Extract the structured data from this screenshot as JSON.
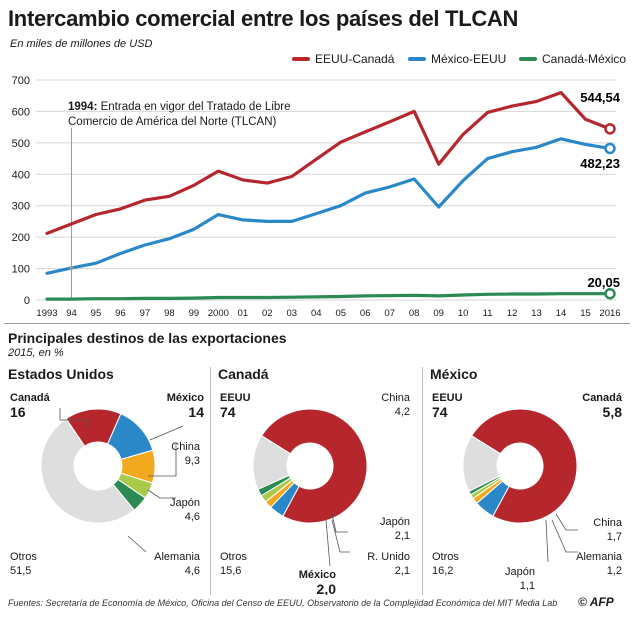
{
  "title": "Intercambio comercial entre los países del TLCAN",
  "subtitle": "En miles de millones de USD",
  "legend": [
    {
      "label": "EEUU-Canadá",
      "color": "#b5262d"
    },
    {
      "label": "México-EEUU",
      "color": "#2a88c9"
    },
    {
      "label": "Canadá-México",
      "color": "#2c8a55"
    }
  ],
  "annotation": "1994: Entrada en vigor del Tratado de Libre Comercio de América del Norte (TLCAN)",
  "annotation_line1": "1994: Entrada en vigor del Tratado de Libre",
  "annotation_line2": "Comercio de América del Norte (TLCAN)",
  "end_labels": [
    "544,54",
    "482,23",
    "20,05"
  ],
  "section2": {
    "title": "Principales destinos de las exportaciones",
    "subtitle": "2015, en %"
  },
  "panels": [
    {
      "title": "Estados Unidos"
    },
    {
      "title": "Canadá"
    },
    {
      "title": "México"
    }
  ],
  "footer": "Fuentes: Secretaría de Economía de México, Oficina del Censo de EEUU, Observatorio de la Complejidad Económica del MIT Media Lab",
  "copyright": "©",
  "agency": "AFP",
  "chart_data": [
    {
      "type": "line",
      "x": [
        "1993",
        "94",
        "95",
        "96",
        "97",
        "98",
        "99",
        "2000",
        "01",
        "02",
        "03",
        "04",
        "05",
        "06",
        "07",
        "08",
        "09",
        "10",
        "11",
        "12",
        "13",
        "14",
        "15",
        "2016"
      ],
      "ylim": [
        0,
        700
      ],
      "yticks": [
        0,
        100,
        200,
        300,
        400,
        500,
        600,
        700
      ],
      "grid": true,
      "legend_position": "top-right",
      "series": [
        {
          "name": "EEUU-Canadá",
          "color": "#b5262d",
          "values": [
            212,
            242,
            272,
            290,
            318,
            330,
            365,
            410,
            382,
            372,
            393,
            448,
            502,
            535,
            567,
            600,
            432,
            527,
            597,
            617,
            632,
            660,
            575,
            544.54
          ]
        },
        {
          "name": "México-EEUU",
          "color": "#2a88c9",
          "values": [
            85,
            102,
            117,
            148,
            175,
            195,
            225,
            272,
            255,
            250,
            250,
            275,
            300,
            340,
            360,
            385,
            296,
            380,
            450,
            472,
            486,
            513,
            495,
            482.23
          ]
        },
        {
          "name": "Canadá-México",
          "color": "#2c8a55",
          "values": [
            3,
            3,
            4,
            4,
            5,
            5,
            6,
            8,
            8,
            8,
            9,
            10,
            11,
            13,
            14,
            15,
            13,
            16,
            18,
            19,
            19,
            20,
            20,
            20.05
          ]
        }
      ]
    },
    {
      "type": "pie",
      "title": "Estados Unidos",
      "slices": [
        {
          "label": "Canadá",
          "value": 16,
          "color": "#b5262d"
        },
        {
          "label": "México",
          "value": 14,
          "color": "#2a88c9"
        },
        {
          "label": "China",
          "value": 9.3,
          "color": "#f2a91e"
        },
        {
          "label": "Japón",
          "value": 4.6,
          "color": "#a9c94b"
        },
        {
          "label": "Alemania",
          "value": 4.6,
          "color": "#2c8a55"
        },
        {
          "label": "Otros",
          "value": 51.5,
          "color": "#dedede"
        }
      ],
      "labels": [
        {
          "name": "Canadá",
          "value": "16",
          "big": true
        },
        {
          "name": "México",
          "value": "14",
          "big": true
        },
        {
          "name": "China",
          "value": "9,3",
          "big": false
        },
        {
          "name": "Japón",
          "value": "4,6",
          "big": false
        },
        {
          "name": "Alemania",
          "value": "4,6",
          "big": false
        },
        {
          "name": "Otros",
          "value": "51,5",
          "big": false
        }
      ]
    },
    {
      "type": "pie",
      "title": "Canadá",
      "slices": [
        {
          "label": "EEUU",
          "value": 74,
          "color": "#b5262d"
        },
        {
          "label": "China",
          "value": 4.2,
          "color": "#2a88c9"
        },
        {
          "label": "Japón",
          "value": 2.1,
          "color": "#f2a91e"
        },
        {
          "label": "R. Unido",
          "value": 2.1,
          "color": "#a9c94b"
        },
        {
          "label": "México",
          "value": 2.0,
          "color": "#2c8a55"
        },
        {
          "label": "Otros",
          "value": 15.6,
          "color": "#dedede"
        }
      ],
      "labels": [
        {
          "name": "EEUU",
          "value": "74",
          "big": true
        },
        {
          "name": "China",
          "value": "4,2",
          "big": false
        },
        {
          "name": "Japón",
          "value": "2,1",
          "big": false
        },
        {
          "name": "R. Unido",
          "value": "2,1",
          "big": false
        },
        {
          "name": "México",
          "value": "2,0",
          "big": true
        },
        {
          "name": "Otros",
          "value": "15,6",
          "big": false
        }
      ]
    },
    {
      "type": "pie",
      "title": "México",
      "slices": [
        {
          "label": "EEUU",
          "value": 74,
          "color": "#b5262d"
        },
        {
          "label": "Canadá",
          "value": 5.8,
          "color": "#2a88c9"
        },
        {
          "label": "China",
          "value": 1.7,
          "color": "#f2a91e"
        },
        {
          "label": "Alemania",
          "value": 1.2,
          "color": "#a9c94b"
        },
        {
          "label": "Japón",
          "value": 1.1,
          "color": "#2c8a55"
        },
        {
          "label": "Otros",
          "value": 16.2,
          "color": "#dedede"
        }
      ],
      "labels": [
        {
          "name": "EEUU",
          "value": "74",
          "big": true
        },
        {
          "name": "Canadá",
          "value": "5,8",
          "big": true
        },
        {
          "name": "China",
          "value": "1,7",
          "big": false
        },
        {
          "name": "Alemania",
          "value": "1,2",
          "big": false
        },
        {
          "name": "Japón",
          "value": "1,1",
          "big": false
        },
        {
          "name": "Otros",
          "value": "16,2",
          "big": false
        }
      ]
    }
  ]
}
